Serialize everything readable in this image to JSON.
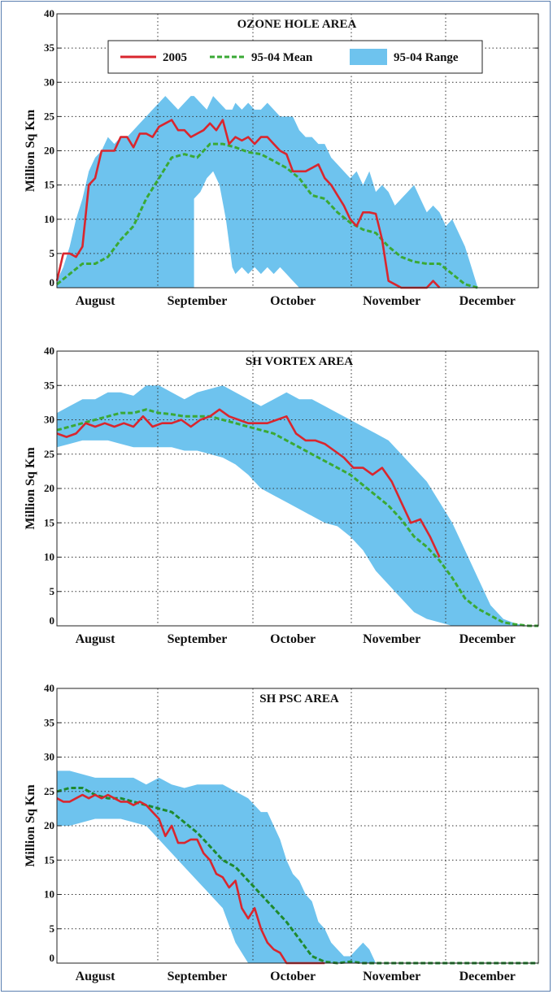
{
  "colors": {
    "obs_2005": "#d9262e",
    "mean": "#3aa935",
    "mean_dark": "#1e8a2e",
    "range": "#6ec3ee",
    "frame": "#5b7fb0"
  },
  "legend": {
    "obs_label": "2005",
    "mean_label": "95-04 Mean",
    "range_label": "95-04 Range"
  },
  "chart_data": [
    {
      "type": "line",
      "title": "OZONE HOLE AREA",
      "ylabel": "Million Sq Km",
      "xlabel": "",
      "x_unit": "day since Jul 20",
      "xlim": [
        0,
        151
      ],
      "ylim": [
        0,
        40
      ],
      "yticks": [
        0,
        5,
        10,
        15,
        20,
        25,
        30,
        35,
        40
      ],
      "month_labels": [
        "August",
        "September",
        "October",
        "November",
        "December"
      ],
      "month_label_x": [
        12,
        44,
        74,
        105,
        135
      ],
      "grid": true,
      "legend_position": "top",
      "series": [
        {
          "name": "95-04 Range",
          "kind": "band",
          "x": [
            0,
            2,
            4,
            6,
            8,
            10,
            12,
            14,
            16,
            18,
            20,
            22,
            24,
            26,
            28,
            30,
            32,
            34,
            36,
            38,
            40,
            42,
            43,
            43,
            45,
            47,
            49,
            51,
            53,
            55,
            56,
            58,
            60,
            62,
            64,
            66,
            68,
            70,
            72,
            74,
            76,
            78,
            80,
            82,
            84,
            86,
            88,
            90,
            92,
            94,
            96,
            98,
            100,
            102,
            104,
            106,
            108,
            110,
            112,
            114,
            116,
            118,
            120,
            122,
            124,
            126,
            128,
            130,
            132
          ],
          "upper": [
            1,
            3,
            6,
            10,
            13,
            17,
            19,
            20,
            22,
            21,
            22,
            22,
            23,
            24,
            25,
            26,
            27,
            28,
            27,
            26,
            27,
            28,
            28,
            28,
            27,
            26,
            28,
            27,
            26,
            26,
            27,
            26,
            27,
            26,
            26,
            27,
            26,
            25,
            25,
            25,
            23,
            22,
            22,
            21,
            21,
            19,
            18,
            17,
            16,
            17,
            15,
            17,
            14,
            15,
            14,
            12,
            13,
            14,
            15,
            13,
            11,
            12,
            11,
            9,
            10,
            8,
            6,
            3,
            0
          ],
          "lower": [
            0,
            0,
            0,
            0,
            0,
            0,
            0,
            0,
            0,
            0,
            0,
            0,
            0,
            0,
            0,
            0,
            0,
            0,
            0,
            0,
            0,
            0,
            0,
            13,
            14,
            16,
            17,
            15,
            10,
            3,
            2,
            3,
            2,
            3,
            2,
            3,
            2,
            3,
            2,
            1,
            0,
            0,
            0,
            0,
            0,
            0,
            0,
            0,
            0,
            0,
            0,
            0,
            0,
            0,
            0,
            0,
            0,
            0,
            0,
            0,
            0,
            0,
            0,
            0,
            0,
            0,
            0,
            0,
            0
          ]
        },
        {
          "name": "95-04 Mean",
          "kind": "line",
          "x": [
            0,
            4,
            8,
            12,
            16,
            20,
            24,
            28,
            32,
            36,
            40,
            44,
            48,
            52,
            56,
            60,
            64,
            68,
            72,
            76,
            80,
            84,
            88,
            92,
            96,
            100,
            104,
            108,
            112,
            116,
            120,
            124,
            128,
            132
          ],
          "y": [
            0.5,
            2,
            3.5,
            3.5,
            4.5,
            7,
            9,
            13,
            16,
            19,
            19.5,
            19,
            21,
            21,
            20.5,
            19.8,
            19.5,
            18.5,
            17.5,
            16,
            13.5,
            13,
            11,
            9.5,
            8.5,
            8,
            6,
            4.5,
            3.8,
            3.5,
            3.5,
            2,
            0.5,
            0
          ]
        },
        {
          "name": "2005",
          "kind": "line",
          "x": [
            0,
            2,
            4,
            6,
            8,
            10,
            12,
            14,
            16,
            18,
            20,
            22,
            24,
            26,
            28,
            30,
            32,
            34,
            36,
            38,
            40,
            42,
            44,
            46,
            48,
            50,
            52,
            54,
            56,
            58,
            60,
            62,
            64,
            66,
            68,
            70,
            72,
            74,
            76,
            78,
            80,
            82,
            84,
            86,
            88,
            90,
            92,
            94,
            96,
            98,
            100,
            102,
            104,
            106,
            108,
            110,
            112,
            114,
            116,
            118,
            120
          ],
          "y": [
            1,
            5,
            5,
            4.5,
            6,
            15,
            16,
            20,
            20,
            20,
            22,
            22,
            20.5,
            22.5,
            22.5,
            22,
            23.5,
            24,
            24.5,
            23,
            23,
            22,
            22.5,
            23,
            24,
            23,
            24.5,
            21,
            22,
            21.5,
            22,
            21,
            22,
            22,
            21,
            20,
            19.5,
            17,
            17,
            17,
            17.5,
            18,
            16,
            15,
            13.5,
            12,
            10,
            9,
            11,
            11,
            10.8,
            7,
            1,
            0.5,
            0,
            0,
            0,
            0,
            0,
            1,
            0
          ]
        }
      ]
    },
    {
      "type": "line",
      "title": "SH VORTEX AREA",
      "ylabel": "Million Sq Km",
      "xlabel": "",
      "x_unit": "day since Jul 20",
      "xlim": [
        0,
        151
      ],
      "ylim": [
        0,
        40
      ],
      "yticks": [
        0,
        5,
        10,
        15,
        20,
        25,
        30,
        35,
        40
      ],
      "month_labels": [
        "August",
        "September",
        "October",
        "November",
        "December"
      ],
      "month_label_x": [
        12,
        44,
        74,
        105,
        135
      ],
      "grid": true,
      "series": [
        {
          "name": "95-04 Range",
          "kind": "band",
          "x": [
            0,
            4,
            8,
            12,
            16,
            20,
            24,
            28,
            32,
            36,
            40,
            44,
            48,
            52,
            56,
            60,
            64,
            68,
            72,
            76,
            80,
            84,
            88,
            92,
            96,
            100,
            104,
            108,
            112,
            116,
            120,
            124,
            128,
            132,
            136,
            140,
            144,
            148,
            151
          ],
          "upper": [
            31,
            32,
            33,
            33,
            34,
            34,
            33.5,
            35,
            35,
            34,
            33,
            34,
            34.5,
            35,
            34,
            33,
            32,
            33,
            34,
            33,
            33,
            32,
            31,
            30,
            29,
            28,
            27,
            25,
            23,
            21,
            18,
            15,
            11,
            7,
            3,
            1,
            0.3,
            0,
            0
          ],
          "lower": [
            26,
            26.5,
            27,
            27,
            27,
            26.5,
            26,
            26,
            26,
            26,
            25.5,
            25.5,
            25,
            24.5,
            23.5,
            22,
            20,
            19,
            18,
            17,
            16,
            15,
            14.5,
            13,
            11,
            8,
            6,
            4,
            2,
            1,
            0.5,
            0,
            0,
            0,
            0,
            0,
            0,
            0,
            0
          ]
        },
        {
          "name": "95-04 Mean",
          "kind": "line",
          "x": [
            0,
            4,
            8,
            12,
            16,
            20,
            24,
            28,
            32,
            36,
            40,
            44,
            48,
            52,
            56,
            60,
            64,
            68,
            72,
            76,
            80,
            84,
            88,
            92,
            96,
            100,
            104,
            108,
            112,
            116,
            120,
            124,
            128,
            132,
            136,
            140,
            144,
            148,
            151
          ],
          "y": [
            28.5,
            29,
            29.5,
            30,
            30.5,
            31,
            31,
            31.5,
            31,
            30.8,
            30.5,
            30.5,
            30.5,
            30,
            29.5,
            29,
            28.5,
            28,
            27,
            26,
            25,
            24,
            23,
            22,
            20.5,
            19,
            17.5,
            15.5,
            13,
            11.5,
            9.5,
            7,
            4,
            2.5,
            1.5,
            0.5,
            0.2,
            0,
            0
          ]
        },
        {
          "name": "2005",
          "kind": "line",
          "x": [
            0,
            3,
            6,
            9,
            12,
            15,
            18,
            21,
            24,
            27,
            30,
            33,
            36,
            39,
            42,
            45,
            48,
            51,
            54,
            57,
            60,
            63,
            66,
            69,
            72,
            75,
            78,
            81,
            84,
            87,
            90,
            93,
            96,
            99,
            102,
            105,
            108,
            111,
            114,
            117,
            120
          ],
          "y": [
            28,
            27.5,
            28,
            29.5,
            29,
            29.5,
            29,
            29.5,
            29,
            30.5,
            29,
            29.5,
            29.5,
            30,
            29,
            30,
            30.5,
            31.5,
            30.5,
            30,
            29.5,
            29.5,
            29.5,
            30,
            30.5,
            28,
            27,
            27,
            26.5,
            25.5,
            24.5,
            23,
            23,
            22,
            23,
            21,
            18,
            15,
            15.5,
            13,
            10
          ]
        }
      ]
    },
    {
      "type": "line",
      "title": "SH PSC AREA",
      "ylabel": "Million Sq Km",
      "xlabel": "",
      "x_unit": "day since Jul 20",
      "xlim": [
        0,
        151
      ],
      "ylim": [
        0,
        40
      ],
      "yticks": [
        0,
        5,
        10,
        15,
        20,
        25,
        30,
        35,
        40
      ],
      "month_labels": [
        "August",
        "September",
        "October",
        "November",
        "December"
      ],
      "month_label_x": [
        12,
        44,
        74,
        105,
        135
      ],
      "grid": true,
      "series": [
        {
          "name": "95-04 Range",
          "kind": "band",
          "x": [
            0,
            4,
            8,
            12,
            16,
            20,
            24,
            28,
            32,
            36,
            40,
            44,
            48,
            52,
            56,
            60,
            64,
            66,
            68,
            70,
            72,
            74,
            76,
            78,
            80,
            82,
            84,
            86,
            88,
            90,
            92,
            94,
            96,
            98,
            100,
            102,
            104
          ],
          "upper": [
            28,
            28,
            27.5,
            27,
            27,
            27,
            27,
            26,
            27,
            26,
            25.5,
            26,
            26,
            26,
            25,
            24,
            22,
            22,
            20,
            18,
            15,
            13,
            12,
            10,
            9,
            6,
            5,
            3,
            2,
            1,
            1,
            2,
            3,
            2,
            0,
            0,
            0
          ],
          "lower": [
            20,
            20,
            20.5,
            21,
            21,
            21,
            20.5,
            20,
            18,
            16,
            14,
            12,
            10,
            8,
            3,
            0,
            0,
            0,
            0,
            0,
            0,
            0,
            0,
            0,
            0,
            0,
            0,
            0,
            0,
            0,
            0,
            0,
            0,
            0,
            0,
            0,
            0
          ]
        },
        {
          "name": "95-04 Mean",
          "kind": "line",
          "x": [
            0,
            4,
            8,
            12,
            16,
            20,
            24,
            28,
            32,
            36,
            40,
            44,
            48,
            52,
            56,
            60,
            64,
            68,
            72,
            76,
            80,
            84,
            88,
            92,
            96,
            100,
            104,
            108,
            112,
            116,
            120,
            124,
            128,
            132,
            136,
            140,
            144,
            148,
            151
          ],
          "y": [
            25,
            25.5,
            25.5,
            24.5,
            24,
            24,
            23.5,
            23,
            22.5,
            22,
            20.5,
            19,
            17,
            15,
            14,
            12,
            10,
            8,
            6,
            3.5,
            1,
            0.2,
            0,
            0.2,
            0,
            0,
            0,
            0,
            0,
            0,
            0,
            0,
            0,
            0,
            0,
            0,
            0,
            0,
            0
          ]
        },
        {
          "name": "2005",
          "kind": "line",
          "x": [
            0,
            2,
            4,
            6,
            8,
            10,
            12,
            14,
            16,
            18,
            20,
            22,
            24,
            26,
            28,
            30,
            32,
            34,
            36,
            38,
            40,
            42,
            44,
            46,
            48,
            50,
            52,
            54,
            56,
            58,
            60,
            62,
            64,
            66,
            68,
            70,
            72,
            74,
            76,
            78,
            80,
            82,
            84
          ],
          "y": [
            24,
            23.5,
            23.5,
            24,
            24.5,
            24,
            24.5,
            24,
            24.5,
            24,
            23.5,
            23.5,
            23,
            23.5,
            23,
            22,
            21,
            18.5,
            20,
            17.5,
            17.5,
            18,
            18,
            16,
            15,
            13,
            12.5,
            11,
            12,
            8,
            6.5,
            8,
            5,
            3,
            2,
            1.5,
            0,
            0,
            0,
            0,
            0,
            0,
            0
          ]
        }
      ]
    }
  ]
}
